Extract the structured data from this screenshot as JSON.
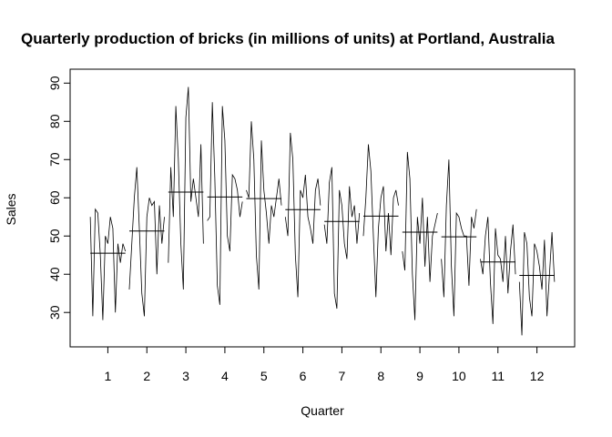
{
  "chart_data": {
    "type": "line",
    "title": "Quarterly production of bricks (in millions of units) at Portland, Australia",
    "xlabel": "Quarter",
    "ylabel": "Sales",
    "categories": [
      "1",
      "2",
      "3",
      "4",
      "5",
      "6",
      "7",
      "8",
      "9",
      "10",
      "11",
      "12"
    ],
    "yticks": [
      30,
      40,
      50,
      60,
      70,
      80,
      90
    ],
    "ylim": [
      21,
      91.5
    ],
    "xlim": [
      0.5,
      12.5
    ],
    "grid": false,
    "legend": "none",
    "means": [
      45.5,
      51.3,
      61.5,
      60.2,
      59.8,
      56.9,
      53.8,
      55.2,
      51.0,
      49.8,
      43.2,
      39.7
    ],
    "subseries": [
      [
        55,
        29,
        57,
        56,
        45,
        28,
        50,
        48,
        55,
        52,
        30,
        48,
        43,
        48,
        46
      ],
      [
        36,
        48,
        60,
        68,
        52,
        35,
        29,
        55,
        60,
        58,
        59,
        40,
        58,
        48,
        55
      ],
      [
        43,
        68,
        55,
        84,
        70,
        48,
        36,
        81,
        89,
        59,
        65,
        60,
        55,
        74,
        48
      ],
      [
        54,
        55,
        85,
        65,
        37,
        32,
        84,
        75,
        50,
        46,
        66,
        65,
        62,
        55,
        59
      ],
      [
        62,
        60,
        80,
        70,
        45,
        36,
        75,
        62,
        56,
        48,
        58,
        55,
        60,
        65,
        58
      ],
      [
        55,
        50,
        77,
        70,
        45,
        34,
        62,
        60,
        66,
        55,
        52,
        48,
        62,
        65,
        58
      ],
      [
        53,
        48,
        64,
        68,
        35,
        31,
        62,
        58,
        48,
        44,
        63,
        55,
        58,
        48,
        56
      ],
      [
        50,
        60,
        74,
        67,
        50,
        34,
        52,
        60,
        63,
        46,
        56,
        45,
        60,
        62,
        58
      ],
      [
        46,
        41,
        72,
        65,
        40,
        28,
        55,
        48,
        60,
        42,
        55,
        38,
        50,
        53,
        56
      ],
      [
        44,
        34,
        58,
        70,
        42,
        29,
        56,
        55,
        52,
        50,
        50,
        37,
        55,
        52,
        57
      ],
      [
        44,
        40,
        50,
        55,
        38,
        27,
        52,
        45,
        44,
        38,
        50,
        35,
        46,
        53,
        40
      ],
      [
        38,
        24,
        51,
        48,
        34,
        29,
        48,
        46,
        42,
        36,
        49,
        29,
        40,
        51,
        38
      ]
    ]
  }
}
